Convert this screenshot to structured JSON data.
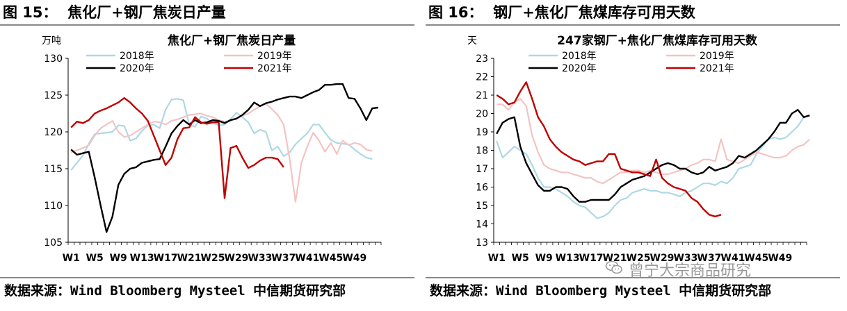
{
  "figures": [
    {
      "caption": "图 15：  焦化厂+钢厂焦炭日产量",
      "source": "数据来源：Wind Bloomberg Mysteel 中信期货研究部"
    },
    {
      "caption": "图 16：  钢厂+焦化厂焦煤库存可用天数",
      "source": "数据来源：Wind Bloomberg Mysteel 中信期货研究部"
    }
  ],
  "watermark": "曾宁大宗商品研究",
  "chart_data": [
    {
      "type": "line",
      "title": "焦化厂+钢厂焦炭日产量",
      "ylabel": "万吨",
      "ylim": [
        105,
        130
      ],
      "yticks": [
        105,
        110,
        115,
        120,
        125,
        130
      ],
      "xticklabels": [
        "W1",
        "W5",
        "W9",
        "W13",
        "W17",
        "W21",
        "W25",
        "W29",
        "W33",
        "W37",
        "W41",
        "W45",
        "W49"
      ],
      "legend": "top",
      "series": [
        {
          "name": "2018年",
          "color": "#add8e6",
          "values": [
            114.8,
            115.8,
            116.8,
            118.4,
            119.7,
            119.8,
            119.9,
            120.0,
            120.9,
            120.8,
            118.8,
            119.1,
            120.1,
            120.9,
            121.0,
            120.5,
            123.0,
            124.4,
            124.5,
            124.3,
            121.0,
            120.7,
            122.1,
            121.8,
            121.2,
            120.9,
            121.0,
            121.7,
            122.6,
            122.0,
            121.3,
            119.8,
            120.3,
            120.0,
            117.5,
            118.0,
            116.7,
            117.2,
            118.3,
            119.1,
            119.8,
            121.0,
            121.0,
            119.9,
            118.9,
            118.5,
            118.4,
            118.3,
            117.6,
            117.0,
            116.5,
            116.3
          ]
        },
        {
          "name": "2019年",
          "color": "#f4c3c3",
          "values": [
            117.2,
            117.5,
            117.8,
            118.2,
            119.5,
            120.5,
            121.0,
            121.5,
            120.0,
            119.3,
            119.5,
            120.0,
            120.5,
            121.0,
            121.4,
            121.3,
            121.0,
            121.5,
            121.7,
            122.0,
            122.3,
            122.4,
            122.5,
            122.2,
            122.0,
            121.6,
            121.4,
            121.5,
            121.8,
            122.2,
            122.5,
            123.0,
            123.5,
            123.8,
            123.1,
            122.3,
            121.0,
            116.4,
            110.5,
            115.8,
            118.0,
            119.9,
            118.8,
            117.3,
            118.5,
            117.0,
            118.8,
            118.2,
            118.5,
            118.3,
            117.6,
            117.4
          ]
        },
        {
          "name": "2020年",
          "color": "#000000",
          "values": [
            117.6,
            116.9,
            117.1,
            117.3,
            113.8,
            110.0,
            106.4,
            108.5,
            112.8,
            114.3,
            115.0,
            115.2,
            115.8,
            116.0,
            116.2,
            116.3,
            118.0,
            119.8,
            120.8,
            121.6,
            121.0,
            121.6,
            121.2,
            121.3,
            121.6,
            121.5,
            121.2,
            121.6,
            121.8,
            122.3,
            123.0,
            124.0,
            123.5,
            123.9,
            124.1,
            124.4,
            124.6,
            124.8,
            124.8,
            124.6,
            125.0,
            125.4,
            125.7,
            126.4,
            126.4,
            126.5,
            126.5,
            124.6,
            124.5,
            123.2,
            121.6,
            123.2,
            123.3
          ]
        },
        {
          "name": "2021年",
          "color": "#c00000",
          "values": [
            120.6,
            121.4,
            121.2,
            121.6,
            122.5,
            122.9,
            123.2,
            123.6,
            124.0,
            124.6,
            124.0,
            123.2,
            122.5,
            121.5,
            119.5,
            117.5,
            115.5,
            116.5,
            119.0,
            120.5,
            120.6,
            122.0,
            121.3,
            121.1,
            121.3,
            121.3,
            111.0,
            117.8,
            118.1,
            116.5,
            115.1,
            115.5,
            116.1,
            116.5,
            116.5,
            116.3,
            115.2
          ]
        }
      ]
    },
    {
      "type": "line",
      "title": "247家钢厂+焦化厂焦煤库存可用天数",
      "ylabel": "天",
      "ylim": [
        13,
        23
      ],
      "yticks": [
        13,
        14,
        15,
        16,
        17,
        18,
        19,
        20,
        21,
        22,
        23
      ],
      "xticklabels": [
        "W1",
        "W5",
        "W9",
        "W13",
        "W17",
        "W21",
        "W25",
        "W29",
        "W33",
        "W37",
        "W41",
        "W45",
        "W49"
      ],
      "legend": "top",
      "series": [
        {
          "name": "2018年",
          "color": "#add8e6",
          "values": [
            18.5,
            17.6,
            17.9,
            18.2,
            18.0,
            17.8,
            17.2,
            16.5,
            16.0,
            16.0,
            15.9,
            15.7,
            15.5,
            15.2,
            15.0,
            14.9,
            14.6,
            14.3,
            14.4,
            14.6,
            15.0,
            15.3,
            15.4,
            15.7,
            15.8,
            15.9,
            15.8,
            15.8,
            15.7,
            15.7,
            15.6,
            15.5,
            15.7,
            15.8,
            16.0,
            16.2,
            16.2,
            16.1,
            16.3,
            16.2,
            16.5,
            17.0,
            17.1,
            17.2,
            17.8,
            18.2,
            18.6,
            18.7,
            18.6,
            18.7,
            19.0,
            19.3,
            19.8
          ]
        },
        {
          "name": "2019年",
          "color": "#f4c3c3",
          "values": [
            20.5,
            20.5,
            20.2,
            20.6,
            20.8,
            20.4,
            18.8,
            17.9,
            17.2,
            17.0,
            16.9,
            16.8,
            16.8,
            16.7,
            16.6,
            16.5,
            16.5,
            16.3,
            16.2,
            16.4,
            16.6,
            16.8,
            16.8,
            16.9,
            16.9,
            16.8,
            16.9,
            16.8,
            16.7,
            16.7,
            16.8,
            16.9,
            17.0,
            17.2,
            17.3,
            17.5,
            17.5,
            17.4,
            18.6,
            17.5,
            17.4,
            17.3,
            17.5,
            17.7,
            17.9,
            17.8,
            17.7,
            17.6,
            17.6,
            17.7,
            18.0,
            18.2,
            18.3,
            18.6
          ]
        },
        {
          "name": "2020年",
          "color": "#000000",
          "values": [
            18.9,
            19.5,
            19.7,
            19.8,
            18.2,
            17.3,
            16.7,
            16.1,
            15.8,
            15.8,
            16.0,
            16.0,
            15.9,
            15.5,
            15.2,
            15.2,
            15.3,
            15.3,
            15.3,
            15.3,
            15.6,
            16.0,
            16.2,
            16.4,
            16.5,
            16.6,
            16.8,
            17.0,
            17.2,
            17.3,
            17.2,
            17.0,
            17.0,
            16.8,
            16.7,
            16.8,
            17.1,
            16.9,
            17.0,
            17.1,
            17.3,
            17.7,
            17.6,
            17.8,
            18.0,
            18.3,
            18.6,
            19.0,
            19.5,
            19.5,
            20.0,
            20.2,
            19.8,
            19.9
          ]
        },
        {
          "name": "2021年",
          "color": "#c00000",
          "values": [
            21.0,
            20.8,
            20.5,
            20.6,
            21.2,
            21.7,
            20.8,
            19.8,
            19.3,
            18.6,
            18.2,
            17.9,
            17.7,
            17.5,
            17.4,
            17.2,
            17.3,
            17.4,
            17.4,
            17.8,
            17.8,
            17.0,
            16.9,
            16.8,
            16.8,
            16.7,
            16.6,
            17.5,
            16.5,
            16.2,
            16.0,
            15.9,
            15.8,
            15.4,
            15.2,
            14.8,
            14.5,
            14.4,
            14.5
          ]
        }
      ]
    }
  ]
}
